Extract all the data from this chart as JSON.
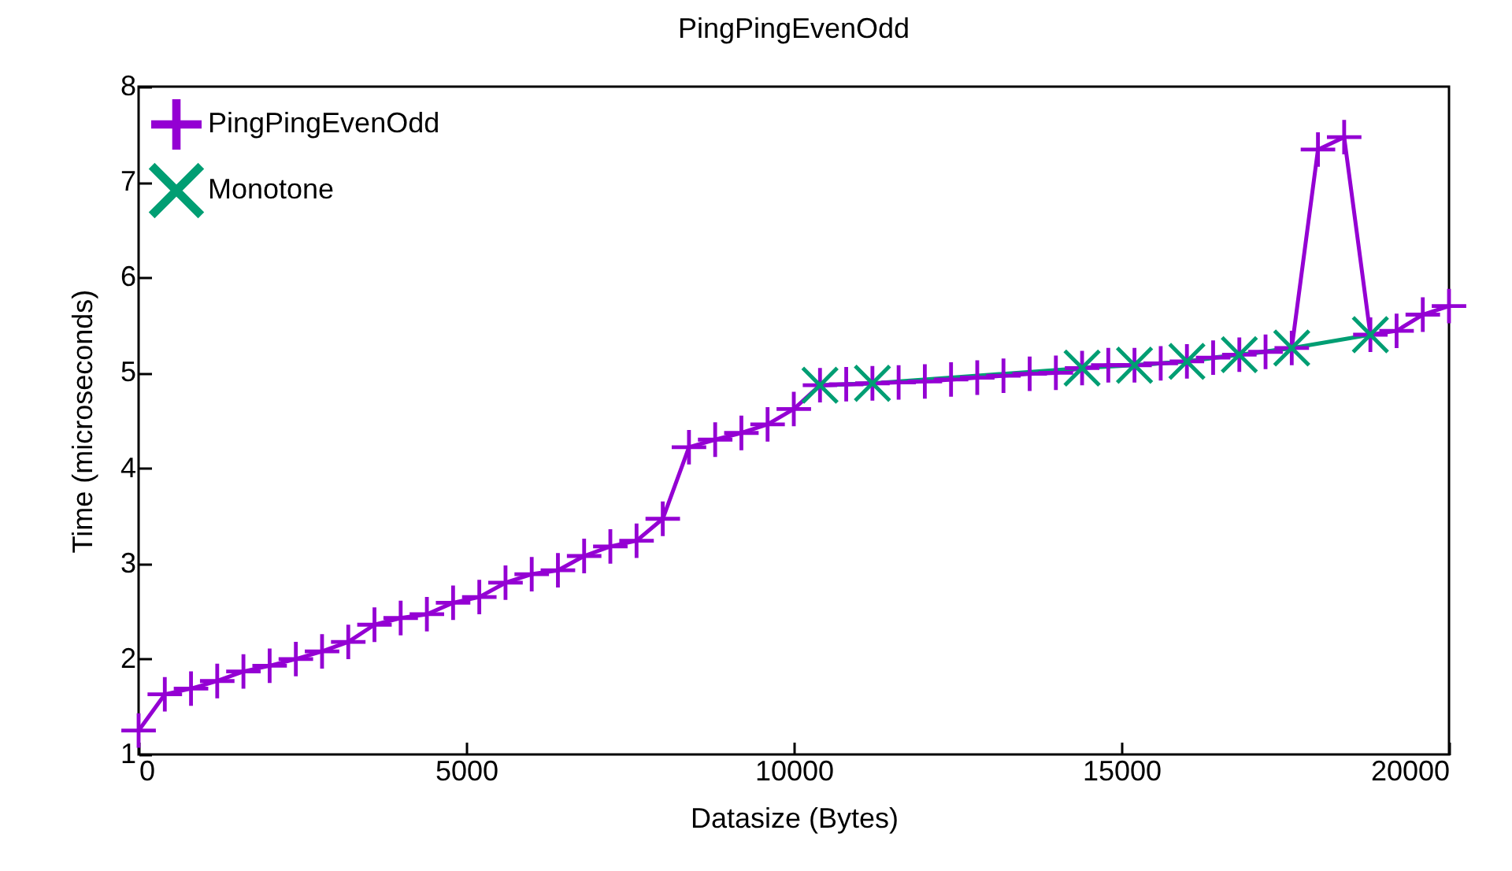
{
  "chart_data": {
    "type": "line",
    "title": "PingPingEvenOdd",
    "xlabel": "Datasize (Bytes)",
    "ylabel": "Time (microseconds)",
    "xlim": [
      0,
      20000
    ],
    "xticks": [
      0,
      5000,
      10000,
      15000,
      20000
    ],
    "ylim": [
      1,
      8
    ],
    "yticks": [
      1,
      2,
      3,
      4,
      5,
      6,
      7,
      8
    ],
    "legend": "top left",
    "line_style": "solid",
    "grid": false,
    "series": [
      {
        "name": "PingPingEvenOdd",
        "color": "#9400d3",
        "marker": "cross",
        "x": [
          0,
          400,
          800,
          1200,
          1600,
          2000,
          2400,
          2800,
          3200,
          3600,
          4000,
          4400,
          4800,
          5200,
          5600,
          6000,
          6400,
          6800,
          7200,
          7600,
          8000,
          8400,
          8800,
          9200,
          9600,
          10000,
          10400,
          10800,
          11200,
          11600,
          12000,
          12400,
          12800,
          13200,
          13600,
          14000,
          14400,
          14800,
          15200,
          15600,
          16000,
          16400,
          16800,
          17200,
          17600,
          18000,
          18400,
          18800,
          19200,
          19600,
          20000
        ],
        "values": [
          1.25,
          1.63,
          1.69,
          1.77,
          1.87,
          1.93,
          2.0,
          2.08,
          2.18,
          2.36,
          2.43,
          2.47,
          2.59,
          2.65,
          2.8,
          2.89,
          2.93,
          3.08,
          3.18,
          3.24,
          3.47,
          4.22,
          4.3,
          4.37,
          4.46,
          4.62,
          4.87,
          4.88,
          4.89,
          4.9,
          4.91,
          4.93,
          4.95,
          4.97,
          4.99,
          5.0,
          5.05,
          5.08,
          5.08,
          5.1,
          5.12,
          5.16,
          5.19,
          5.22,
          5.26,
          7.34,
          7.47,
          5.4,
          5.44,
          5.61,
          5.7
        ]
      },
      {
        "name": "Monotone",
        "color": "#009e73",
        "marker": "x",
        "x": [
          10400,
          11200,
          14400,
          15200,
          16000,
          16800,
          17600,
          18800
        ],
        "values": [
          4.87,
          4.89,
          5.05,
          5.08,
          5.12,
          5.19,
          5.26,
          5.4
        ]
      }
    ]
  }
}
